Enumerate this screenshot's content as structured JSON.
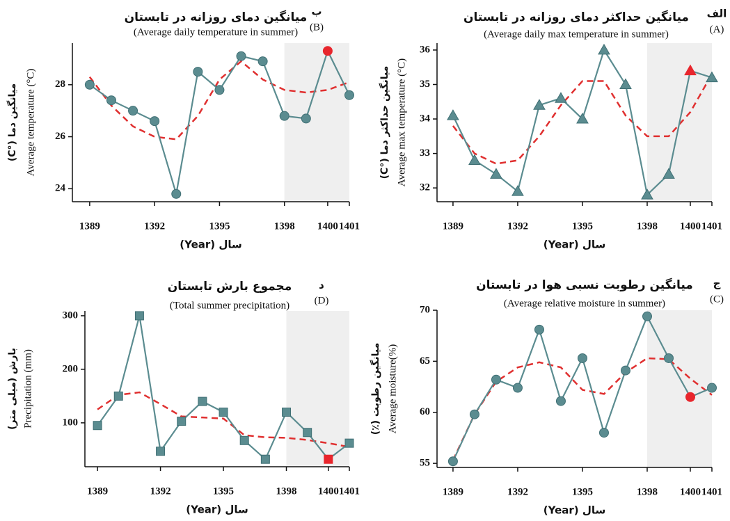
{
  "chart_data": [
    {
      "type": "line",
      "letter": "ب",
      "letter_en": "(B)",
      "title": "میانگین دمای روزانه در تابستان",
      "subtitle": "(Average daily temperature in summer)",
      "y_label_fa": "میانگین دما (°C)",
      "y_label_en": "Average temperature (°C)",
      "x_label": "سال (Year)",
      "x": [
        1389,
        1390,
        1391,
        1392,
        1393,
        1394,
        1395,
        1396,
        1397,
        1398,
        1399,
        1400,
        1401
      ],
      "series": [
        {
          "color": "#5b8c90",
          "marker": "circle",
          "values": [
            28.0,
            27.4,
            27.0,
            26.6,
            23.8,
            28.5,
            27.8,
            29.1,
            28.9,
            26.8,
            26.7,
            29.3,
            27.6
          ]
        },
        {
          "color": "#e03030",
          "dashed": true,
          "values": [
            28.3,
            27.2,
            26.4,
            26.0,
            25.9,
            26.8,
            28.2,
            28.9,
            28.2,
            27.8,
            27.7,
            27.8,
            28.1
          ]
        }
      ],
      "xlim": [
        1388.2,
        1401
      ],
      "xticks": [
        1389,
        1392,
        1395,
        1398,
        1400,
        1401
      ],
      "ylim": [
        23.5,
        29.6
      ],
      "yticks": [
        24,
        26,
        28
      ],
      "shade": [
        1398,
        1401
      ],
      "highlight_x": 1400,
      "highlight_color": "#e8262d"
    },
    {
      "type": "line",
      "letter": "الف",
      "letter_en": "(A)",
      "title": "میانگین حداکثر دمای روزانه در تابستان",
      "subtitle": "(Average daily max temperature in summer)",
      "y_label_fa": "میانگین حداکثر دما (°C)",
      "y_label_en": "Average max temperature (°C)",
      "x_label": "سال (Year)",
      "x": [
        1389,
        1390,
        1391,
        1392,
        1393,
        1394,
        1395,
        1396,
        1397,
        1398,
        1399,
        1400,
        1401
      ],
      "series": [
        {
          "color": "#5b8c90",
          "marker": "triangle",
          "values": [
            34.1,
            32.8,
            32.4,
            31.9,
            34.4,
            34.6,
            34.0,
            36.0,
            35.0,
            31.8,
            32.4,
            35.4,
            35.2
          ]
        },
        {
          "color": "#e03030",
          "dashed": true,
          "values": [
            33.8,
            33.0,
            32.7,
            32.8,
            33.5,
            34.4,
            35.1,
            35.1,
            34.1,
            33.5,
            33.5,
            34.2,
            35.3
          ]
        }
      ],
      "xlim": [
        1388.26,
        1401
      ],
      "xticks": [
        1389,
        1392,
        1395,
        1398,
        1400,
        1401
      ],
      "ylim": [
        31.6,
        36.2
      ],
      "yticks": [
        32,
        33,
        34,
        35,
        36
      ],
      "shade": [
        1398,
        1401
      ],
      "highlight_x": 1400,
      "highlight_color": "#e8262d"
    },
    {
      "type": "line",
      "letter": "د",
      "letter_en": "(D)",
      "title": "مجموع بارش تابستان",
      "subtitle": "(Total summer precipitation)",
      "y_label_fa": "بارش (میلی متر)",
      "y_label_en": "Precipitation (mm)",
      "x_label": "سال (Year)",
      "x": [
        1389,
        1390,
        1391,
        1392,
        1393,
        1394,
        1395,
        1396,
        1397,
        1398,
        1399,
        1400,
        1401
      ],
      "series": [
        {
          "color": "#5b8c90",
          "marker": "square",
          "values": [
            95,
            150,
            300,
            47,
            103,
            140,
            120,
            67,
            32,
            120,
            82,
            32,
            62
          ]
        },
        {
          "color": "#e03030",
          "dashed": true,
          "values": [
            125,
            152,
            157,
            135,
            112,
            110,
            108,
            77,
            73,
            72,
            68,
            62,
            55
          ]
        }
      ],
      "xlim": [
        1388.4,
        1401
      ],
      "xticks": [
        1389,
        1392,
        1395,
        1398,
        1400,
        1401
      ],
      "ylim": [
        18,
        309
      ],
      "yticks": [
        100,
        200,
        300
      ],
      "shade": [
        1398,
        1401
      ],
      "highlight_x": 1400,
      "highlight_color": "#e8262d"
    },
    {
      "type": "line",
      "letter": "ج",
      "letter_en": "(C)",
      "title": "میانگین رطوبت نسبی هوا در تابستان",
      "subtitle": "(Average relative moisture in summer)",
      "y_label_fa": "میانگین رطوبت (٪)",
      "y_label_en": "Average moisture(%)",
      "x_label": "سال (Year)",
      "x": [
        1389,
        1390,
        1391,
        1392,
        1393,
        1394,
        1395,
        1396,
        1397,
        1398,
        1399,
        1400,
        1401
      ],
      "series": [
        {
          "color": "#5b8c90",
          "marker": "circle",
          "values": [
            55.2,
            59.8,
            63.2,
            62.4,
            68.1,
            61.1,
            65.3,
            58.0,
            64.1,
            69.4,
            65.3,
            61.5,
            62.4
          ]
        },
        {
          "color": "#e03030",
          "dashed": true,
          "values": [
            55.3,
            59.8,
            63.0,
            64.4,
            64.9,
            64.4,
            62.2,
            61.8,
            63.9,
            65.3,
            65.2,
            63.3,
            61.7
          ]
        }
      ],
      "xlim": [
        1388.26,
        1401
      ],
      "xticks": [
        1389,
        1392,
        1395,
        1398,
        1400,
        1401
      ],
      "ylim": [
        54.6,
        70
      ],
      "yticks": [
        55,
        60,
        65,
        70
      ],
      "shade": [
        1398,
        1401
      ],
      "highlight_x": 1400,
      "highlight_color": "#e8262d"
    }
  ]
}
